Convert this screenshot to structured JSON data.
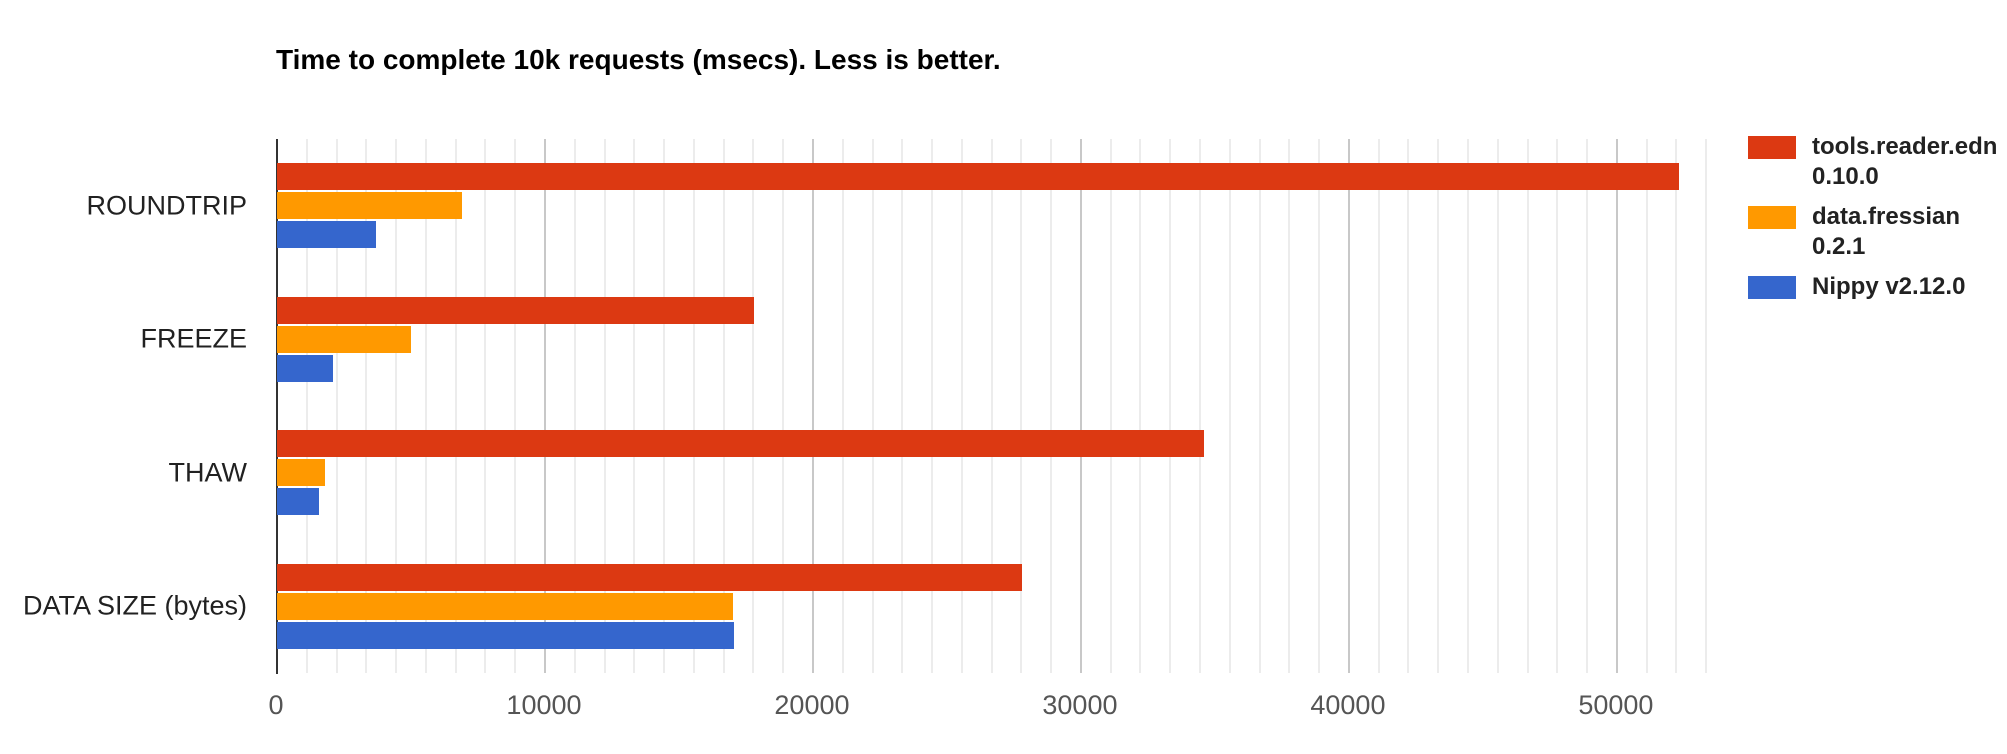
{
  "chart_data": {
    "type": "bar",
    "orientation": "horizontal",
    "title": "Time to complete 10k requests (msecs). Less is better.",
    "categories": [
      "ROUNDTRIP",
      "FREEZE",
      "THAW",
      "DATA SIZE (bytes)"
    ],
    "series": [
      {
        "name": "tools.reader.edn 0.10.0",
        "color": "#dc3912",
        "values": [
          52300,
          17800,
          34600,
          27800
        ]
      },
      {
        "name": "data.fressian 0.2.1",
        "color": "#ff9900",
        "values": [
          6900,
          5000,
          1800,
          17000
        ]
      },
      {
        "name": "Nippy v2.12.0",
        "color": "#3566cd",
        "values": [
          3700,
          2100,
          1550,
          17050
        ]
      }
    ],
    "x_axis": {
      "min": 0,
      "max": 54444,
      "minor_step": 1111.11,
      "ticks": [
        {
          "value": 0,
          "label": "0"
        },
        {
          "value": 10000,
          "label": "10000"
        },
        {
          "value": 20000,
          "label": "20000"
        },
        {
          "value": 30000,
          "label": "30000"
        },
        {
          "value": 40000,
          "label": "40000"
        },
        {
          "value": 50000,
          "label": "50000"
        }
      ]
    },
    "legend_position": "right",
    "grid": true,
    "colors": {
      "major_gridline": "#c8c8c8",
      "minor_gridline": "#ececec",
      "baseline": "#333333",
      "axis_label": "#555555",
      "category_label": "#212121",
      "legend_text": "#222222",
      "title": "#000000",
      "background": "#ffffff"
    }
  }
}
